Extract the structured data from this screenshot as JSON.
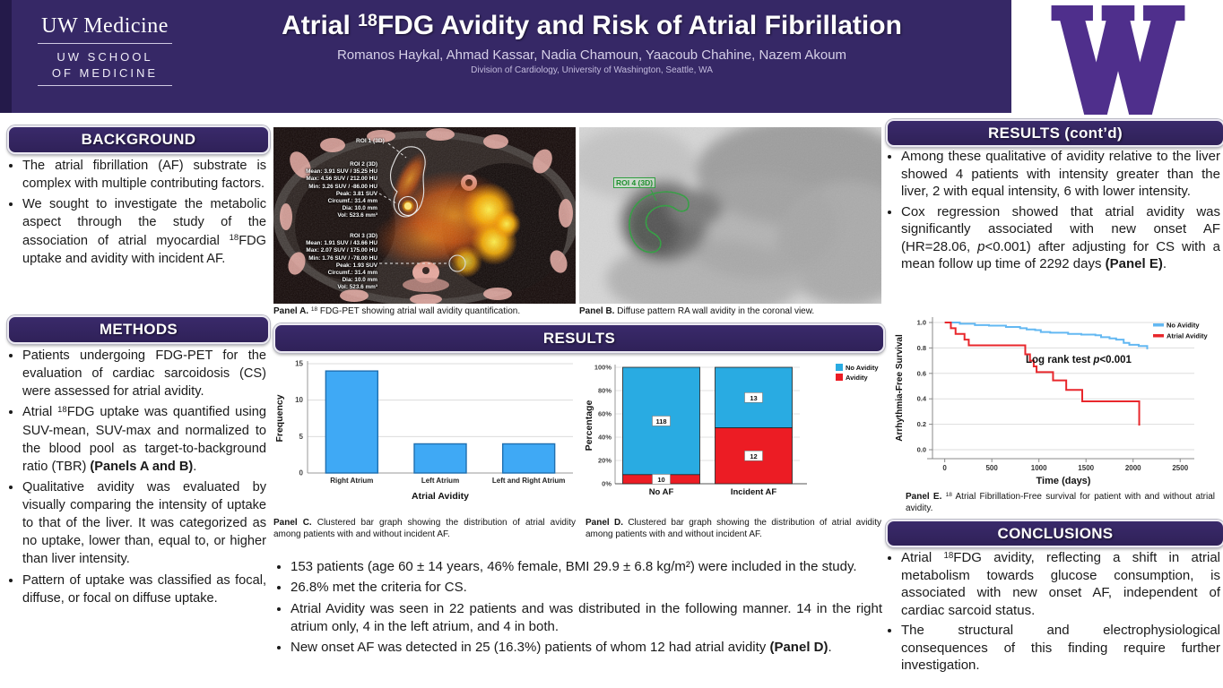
{
  "header": {
    "logo_brand": "UW Medicine",
    "logo_school_line1": "UW SCHOOL",
    "logo_school_line2": "OF MEDICINE",
    "title": "Atrial ^{18}FDG Avidity and Risk of Atrial Fibrillation",
    "authors": "Romanos Haykal, Ahmad Kassar, Nadia Chamoun, Yaacoub Chahine, Nazem Akoum",
    "affiliation": "Division of Cardiology, University of Washington, Seattle, WA",
    "uw_logo": "uw-block-w",
    "colors": {
      "header_purple": "#362866",
      "uw_purple": "#4f2f8c"
    }
  },
  "sections": {
    "background": {
      "title": "BACKGROUND",
      "bullets": [
        "The atrial fibrillation (AF) substrate is complex with multiple contributing factors.",
        "We sought to investigate the metabolic aspect through the study of the association of atrial myocardial ^{18}FDG uptake and avidity with incident AF."
      ]
    },
    "methods": {
      "title": "METHODS",
      "bullets": [
        "Patients undergoing FDG-PET for the evaluation of cardiac sarcoidosis (CS) were assessed for atrial avidity.",
        "Atrial ^{18}FDG uptake was quantified using SUV-mean, SUV-max and normalized to the blood pool as target-to-background ratio (TBR) **(Panels A and B)**.",
        "Qualitative avidity was evaluated by visually comparing the intensity of uptake to that of the liver. It was categorized as no uptake, lower than, equal to, or higher than liver intensity.",
        "Pattern of uptake was classified as focal, diffuse, or focal on diffuse uptake."
      ]
    },
    "results_mid": {
      "title": "RESULTS",
      "bullets": [
        "153 patients (age 60 ± 14 years, 46% female, BMI 29.9 ± 6.8 kg/m²) were included in the study.",
        "26.8% met the criteria for CS.",
        "Atrial Avidity was seen in 22 patients and was distributed in the following manner. 14 in the right atrium only, 4 in the left atrium, and 4 in both.",
        "New onset AF was detected in 25 (16.3%) patients of whom 12 had atrial avidity **(Panel D)**."
      ]
    },
    "results_right": {
      "title": "RESULTS (cont’d)",
      "bullets": [
        "Among these qualitative of avidity relative to the liver showed 4 patients with intensity greater than the liver, 2 with equal intensity, 6 with lower intensity.",
        "Cox regression showed that atrial avidity was significantly associated with new onset AF (HR=28.06, *p*<0.001) after adjusting for CS with a mean follow up time of 2292 days **(Panel E)**."
      ]
    },
    "conclusions": {
      "title": "CONCLUSIONS",
      "bullets": [
        "Atrial ^{18}FDG avidity, reflecting a shift in atrial metabolism towards glucose consumption, is associated with new onset AF, independent of cardiac sarcoid status.",
        "The structural and electrophysiological consequences of this finding require further investigation."
      ]
    }
  },
  "panels": {
    "a": {
      "caption": "**Panel A.** ^{18} FDG-PET showing atrial wall avidity quantification.",
      "roi1_label": "ROI 1 (3D)",
      "roi2_lines": [
        "ROI 2 (3D)",
        "Mean: 3.91 SUV / 35.25 HU",
        "Max: 4.56 SUV / 212.00 HU",
        "Min: 3.26 SUV / -86.00 HU",
        "Peak: 3.81 SUV",
        "Circumf.: 31.4 mm",
        "Dia: 10.0 mm",
        "Vol: 523.6 mm³"
      ],
      "roi3_lines": [
        "ROI 3 (3D)",
        "Mean: 1.91 SUV / 43.66 HU",
        "Max: 2.07 SUV / 175.00 HU",
        "Min: 1.76 SUV / -78.00 HU",
        "Peak: 1.93 SUV",
        "Circumf.: 31.4 mm",
        "Dia: 10.0 mm",
        "Vol: 523.6 mm³"
      ]
    },
    "b": {
      "caption": "**Panel B.** Diffuse pattern RA wall avidity in the coronal view.",
      "roi_label": "ROI 4 (3D)"
    },
    "c": {
      "caption": "**Panel C.** Clustered bar graph showing the distribution of atrial avidity among patients with and without incident AF."
    },
    "d": {
      "caption": "**Panel D.** Clustered bar graph showing the distribution of atrial avidity among patients with and without incident AF."
    },
    "e": {
      "caption": "**Panel E.** ^{18} Atrial Fibrillation-Free survival for patient with and without atrial avidity."
    }
  },
  "chart_data": [
    {
      "id": "panel_c",
      "type": "bar",
      "categories": [
        "Right Atrium",
        "Left Atrium",
        "Left and Right Atrium"
      ],
      "values": [
        14,
        4,
        4
      ],
      "xlabel": "Atrial Avidity",
      "ylabel": "Frequency",
      "ylim": [
        0,
        15
      ],
      "yticks": [
        0,
        5,
        10,
        15
      ],
      "grid": true,
      "bar_color": "#3fa9f5",
      "bar_border": "#1f6fb0"
    },
    {
      "id": "panel_d",
      "type": "stacked_bar_percent",
      "categories": [
        "No AF",
        "Incident AF"
      ],
      "series": [
        {
          "name": "Avidity",
          "color": "#ec1c24",
          "counts": [
            10,
            12
          ]
        },
        {
          "name": "No Avidity",
          "color": "#29abe2",
          "counts": [
            118,
            13
          ]
        }
      ],
      "ylabel": "Percentage",
      "yticks": [
        "0%",
        "20%",
        "40%",
        "60%",
        "80%",
        "100%"
      ],
      "legend_order": [
        "No Avidity",
        "Avidity"
      ],
      "legend_position": "top-right"
    },
    {
      "id": "panel_e",
      "type": "line_step",
      "xlabel": "Time (days)",
      "ylabel": "Arrhythmia-Free Survival",
      "xticks": [
        0,
        500,
        1000,
        1500,
        2000,
        2500
      ],
      "yticks": [
        0.0,
        0.2,
        0.4,
        0.6,
        0.8,
        1.0
      ],
      "xlim": [
        -130,
        2650
      ],
      "ylim": [
        0,
        1.0
      ],
      "grid": true,
      "annotation": "Log rank test *p*<0.001",
      "legend_position": "top-right",
      "series": [
        {
          "name": "No Avidity",
          "color": "#63b8f2",
          "points": [
            [
              0,
              1.0
            ],
            [
              120,
              1.0
            ],
            [
              160,
              0.99
            ],
            [
              320,
              0.98
            ],
            [
              470,
              0.975
            ],
            [
              650,
              0.965
            ],
            [
              800,
              0.955
            ],
            [
              870,
              0.945
            ],
            [
              960,
              0.94
            ],
            [
              1020,
              0.925
            ],
            [
              1120,
              0.92
            ],
            [
              1310,
              0.91
            ],
            [
              1450,
              0.905
            ],
            [
              1600,
              0.9
            ],
            [
              1660,
              0.885
            ],
            [
              1750,
              0.875
            ],
            [
              1820,
              0.865
            ],
            [
              1900,
              0.84
            ],
            [
              1960,
              0.825
            ],
            [
              2060,
              0.815
            ],
            [
              2150,
              0.79
            ]
          ]
        },
        {
          "name": "Atrial Avidity",
          "color": "#e8272c",
          "points": [
            [
              0,
              1.0
            ],
            [
              65,
              0.955
            ],
            [
              115,
              0.91
            ],
            [
              210,
              0.865
            ],
            [
              255,
              0.82
            ],
            [
              855,
              0.75
            ],
            [
              905,
              0.7
            ],
            [
              945,
              0.655
            ],
            [
              975,
              0.61
            ],
            [
              1150,
              0.545
            ],
            [
              1290,
              0.47
            ],
            [
              1460,
              0.38
            ],
            [
              2065,
              0.19
            ]
          ]
        }
      ]
    }
  ]
}
